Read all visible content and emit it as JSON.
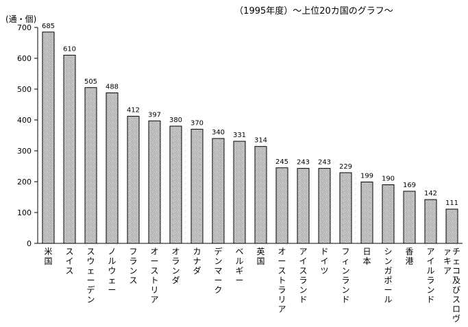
{
  "chart_data": {
    "type": "bar",
    "title": "（1995年度）～上位20カ国のグラフ～",
    "ylabel": "(通・個)",
    "xlabel": "",
    "ylim": [
      0,
      700
    ],
    "yticks": [
      0,
      100,
      200,
      300,
      400,
      500,
      600,
      700
    ],
    "grid": false,
    "legend": "none",
    "bar_fill": "dotted-gray",
    "categories": [
      "米国",
      "スイス",
      "スウェーデン",
      "ノルウェー",
      "フランス",
      "オーストリア",
      "オランダ",
      "カナダ",
      "デンマーク",
      "ベルギー",
      "英国",
      "オーストラリア",
      "アイスランド",
      "ドイツ",
      "フィンランド",
      "日本",
      "シンガポール",
      "香港",
      "アイルランド",
      "チェコ及びスロヴァキア"
    ],
    "values": [
      685,
      610,
      505,
      488,
      412,
      397,
      380,
      370,
      340,
      331,
      314,
      245,
      243,
      243,
      229,
      199,
      190,
      169,
      142,
      111
    ]
  }
}
